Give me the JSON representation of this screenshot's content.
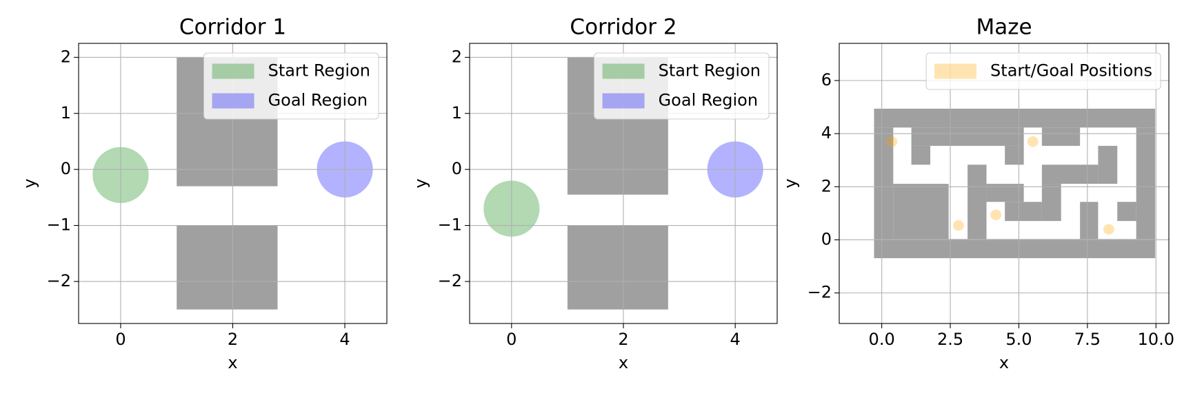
{
  "chart_data": [
    {
      "type": "region-map",
      "title": "Corridor 1",
      "xlabel": "x",
      "ylabel": "y",
      "xlim": [
        -0.75,
        4.75
      ],
      "ylim": [
        -2.75,
        2.25
      ],
      "xticks": [
        0,
        2,
        4
      ],
      "yticks": [
        {
          "value": -2,
          "label": "−2"
        },
        {
          "value": -1,
          "label": "−1"
        },
        0,
        1,
        2
      ],
      "grid": true,
      "legend": "upper right",
      "obstacle_color": "#a0a0a0",
      "obstacles": [
        [
          1.0,
          -0.3,
          2.8,
          2.0
        ],
        [
          1.0,
          -2.5,
          2.8,
          -1.0
        ]
      ],
      "series": [
        {
          "name": "Start Region",
          "color": "green",
          "alpha": 0.3,
          "x": [
            0
          ],
          "y": [
            -0.1
          ],
          "radius": 0.5
        },
        {
          "name": "Goal Region",
          "color": "blue",
          "alpha": 0.3,
          "x": [
            4
          ],
          "y": [
            0
          ],
          "radius": 0.5
        }
      ]
    },
    {
      "type": "region-map",
      "title": "Corridor 2",
      "xlabel": "x",
      "ylabel": "y",
      "xlim": [
        -0.75,
        4.75
      ],
      "ylim": [
        -2.75,
        2.25
      ],
      "xticks": [
        0,
        2,
        4
      ],
      "yticks": [
        {
          "value": -2,
          "label": "−2"
        },
        {
          "value": -1,
          "label": "−1"
        },
        0,
        1,
        2
      ],
      "grid": true,
      "legend": "upper right",
      "obstacle_color": "#a0a0a0",
      "obstacles": [
        [
          1.0,
          -0.45,
          2.8,
          2.0
        ],
        [
          1.0,
          -2.5,
          2.8,
          -1.0
        ]
      ],
      "series": [
        {
          "name": "Start Region",
          "color": "green",
          "alpha": 0.3,
          "x": [
            0
          ],
          "y": [
            -0.7
          ],
          "radius": 0.5
        },
        {
          "name": "Goal Region",
          "color": "blue",
          "alpha": 0.3,
          "x": [
            4
          ],
          "y": [
            0
          ],
          "radius": 0.5
        }
      ]
    },
    {
      "type": "region-map",
      "title": "Maze",
      "xlabel": "x",
      "ylabel": "y",
      "xlim": [
        -1.55,
        10.47
      ],
      "ylim": [
        -3.15,
        7.4
      ],
      "xticks": [
        {
          "value": 0,
          "label": "0.0"
        },
        {
          "value": 2.5,
          "label": "2.5"
        },
        {
          "value": 5,
          "label": "5.0"
        },
        {
          "value": 7.5,
          "label": "7.5"
        },
        {
          "value": 10,
          "label": "10.0"
        }
      ],
      "yticks": [
        {
          "value": -2,
          "label": "−2"
        },
        0,
        2,
        4,
        6
      ],
      "grid": true,
      "legend": "upper right",
      "obstacle_color": "#a0a0a0",
      "obstacles": [
        [
          -0.28,
          4.23,
          9.97,
          4.94
        ],
        [
          -0.28,
          -0.69,
          9.97,
          0.03
        ],
        [
          -0.28,
          0.03,
          0.42,
          4.23
        ],
        [
          9.28,
          0.03,
          9.97,
          4.23
        ],
        [
          1.08,
          3.54,
          5.18,
          4.23
        ],
        [
          1.08,
          2.83,
          1.77,
          3.54
        ],
        [
          4.49,
          2.83,
          5.18,
          3.54
        ],
        [
          5.84,
          3.54,
          7.23,
          4.23
        ],
        [
          7.89,
          2.11,
          8.59,
          3.54
        ],
        [
          5.84,
          2.11,
          7.89,
          2.83
        ],
        [
          3.13,
          0.03,
          3.82,
          2.83
        ],
        [
          0.42,
          0.03,
          2.44,
          2.11
        ],
        [
          3.82,
          1.43,
          5.18,
          2.11
        ],
        [
          5.84,
          0.71,
          6.54,
          2.11
        ],
        [
          4.49,
          0.71,
          5.84,
          1.43
        ],
        [
          7.23,
          0.03,
          7.89,
          1.43
        ],
        [
          8.59,
          0.71,
          9.28,
          1.43
        ]
      ],
      "series": [
        {
          "name": "Start/Goal Positions",
          "color": "orange",
          "alpha": 0.3,
          "x": [
            0.37,
            5.51,
            2.8,
            4.16,
            8.28
          ],
          "y": [
            3.7,
            3.7,
            0.54,
            0.94,
            0.4
          ],
          "radius": 0.2
        }
      ]
    }
  ]
}
